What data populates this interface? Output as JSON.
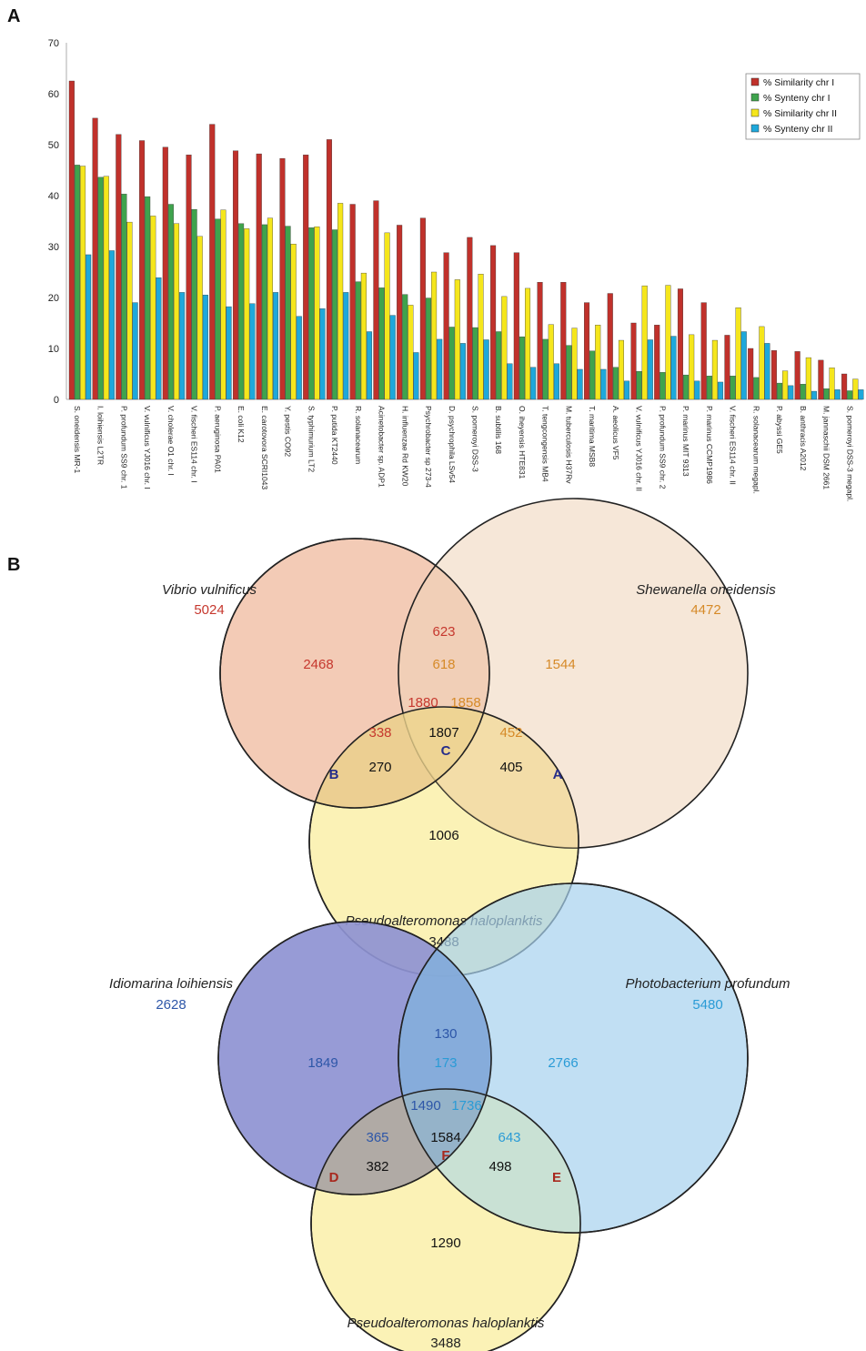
{
  "panel_a": {
    "label": "A"
  },
  "panel_b": {
    "label": "B"
  },
  "chart_data": [
    {
      "type": "bar",
      "ylim": [
        0,
        70
      ],
      "yticks": [
        0,
        10,
        20,
        30,
        40,
        50,
        60,
        70
      ],
      "grid": false,
      "legend_position": "top-right",
      "categories": [
        "S. oneidensis MR-1",
        "I. loihiensis L2TR",
        "P. profundum SS9 chr. 1",
        "V. vulnificus YJ016 chr. I",
        "V. cholerae O1 chr. I",
        "V. fischeri ES114 chr. I",
        "P. aeruginosa PA01",
        "E. coli K12",
        "E. carotovora SCRI1043",
        "Y. pestis CO92",
        "S. typhimurium LT2",
        "P. putida KT2440",
        "R. solanacearum",
        "Acinetobacter sp. ADP1",
        "H. influenzae Rd KW20",
        "Psychrobacter sp 273-4",
        "D. psychrophila LSv54",
        "S. pomeroyi DSS-3",
        "B. subtilis 168",
        "O. iheyensis HTE831",
        "T. tengcongensis MB4",
        "M. tuberculosis H37Rv",
        "T. maritima MSB8",
        "A. aeolicus VF5",
        "V. vulnificus YJ016 chr. II",
        "P. profundum SS9 chr. 2",
        "P. marinus MIT 9313",
        "P. marinus CCMP1986",
        "V. fischeri ES114 chr. II",
        "R. solanacearum megapl.",
        "P. abyssi GE5",
        "B. anthracis A2012",
        "M. jannaschii DSM 2661",
        "S. pomeroyi DSS-3 megapl."
      ],
      "series": [
        {
          "name": "% Similarity chr I",
          "color": "#c0312b",
          "values": [
            62.5,
            55.2,
            52,
            50.8,
            49.5,
            48,
            54,
            48.8,
            48.2,
            47.3,
            48,
            51,
            38.3,
            39,
            34.2,
            35.6,
            28.8,
            31.8,
            30.2,
            28.8,
            23,
            23,
            19,
            20.8,
            15,
            14.6,
            21.7,
            19,
            12.6,
            10,
            9.6,
            9.4,
            7.7,
            5
          ]
        },
        {
          "name": "% Synteny chr I",
          "color": "#3fa34d",
          "values": [
            46,
            43.6,
            40.3,
            39.8,
            38.3,
            37.3,
            35.4,
            34.5,
            34.3,
            34,
            33.7,
            33.3,
            23.1,
            21.9,
            20.6,
            19.9,
            14.2,
            14.1,
            13.3,
            12.3,
            11.8,
            10.6,
            9.5,
            6.3,
            5.5,
            5.3,
            4.8,
            4.6,
            4.6,
            4.3,
            3.2,
            3,
            2.1,
            1.7
          ]
        },
        {
          "name": "% Similarity chr II",
          "color": "#f5e61c",
          "values": [
            45.8,
            43.8,
            34.8,
            36,
            34.5,
            32,
            37.2,
            33.5,
            35.6,
            30.5,
            33.9,
            38.5,
            24.8,
            32.7,
            18.5,
            25,
            23.5,
            24.6,
            20.2,
            21.8,
            14.7,
            14,
            14.6,
            11.6,
            22.3,
            22.4,
            12.7,
            11.6,
            18,
            14.3,
            5.6,
            8.2,
            6.2,
            4
          ]
        },
        {
          "name": "% Synteny chr II",
          "color": "#1ea8db",
          "values": [
            28.4,
            29.2,
            19,
            23.9,
            21,
            20.5,
            18.2,
            18.8,
            21,
            16.3,
            17.8,
            21,
            13.3,
            16.5,
            9.2,
            11.8,
            11,
            11.7,
            7,
            6.3,
            7,
            5.9,
            5.9,
            3.6,
            11.7,
            12.4,
            3.6,
            3.4,
            13.3,
            11,
            2.7,
            1.6,
            1.9,
            1.9
          ]
        }
      ]
    },
    {
      "type": "venn",
      "sets": [
        {
          "name": "Vibrio vulnificus",
          "total": "5024",
          "color": "#c6382e"
        },
        {
          "name": "Shewanella oneidensis",
          "total": "4472",
          "color": "#d68a28"
        },
        {
          "name": "Pseudoalteromonas haloplanktis",
          "total": "3488",
          "color": "#222222"
        }
      ],
      "regions": [
        {
          "value": "2468",
          "color": "#c6382e"
        },
        {
          "value": "623",
          "color": "#c6382e"
        },
        {
          "value": "618",
          "color": "#d68a28"
        },
        {
          "value": "1544",
          "color": "#d68a28"
        },
        {
          "value": "1880",
          "color": "#c6382e"
        },
        {
          "value": "1858",
          "color": "#d68a28"
        },
        {
          "value": "338",
          "color": "#c6382e"
        },
        {
          "value": "1807",
          "color": "#111111"
        },
        {
          "value": "452",
          "color": "#d68a28"
        },
        {
          "value": "270",
          "color": "#111111"
        },
        {
          "value": "405",
          "color": "#111111"
        },
        {
          "value": "1006",
          "color": "#111111"
        }
      ],
      "region_labels": [
        {
          "label": "B",
          "color": "#262d8a"
        },
        {
          "label": "C",
          "color": "#262d8a"
        },
        {
          "label": "A",
          "color": "#262d8a"
        }
      ]
    },
    {
      "type": "venn",
      "sets": [
        {
          "name": "Idiomarina loihiensis",
          "total": "2628",
          "color": "#2d56a8"
        },
        {
          "name": "Photobacterium profundum",
          "total": "5480",
          "color": "#2a9bd6"
        },
        {
          "name": "Pseudoalteromonas haloplanktis",
          "total": "3488",
          "color": "#222222"
        }
      ],
      "regions": [
        {
          "value": "1849",
          "color": "#2d56a8"
        },
        {
          "value": "130",
          "color": "#2d56a8"
        },
        {
          "value": "173",
          "color": "#2a9bd6"
        },
        {
          "value": "2766",
          "color": "#2a9bd6"
        },
        {
          "value": "1490",
          "color": "#2d56a8"
        },
        {
          "value": "1736",
          "color": "#2a9bd6"
        },
        {
          "value": "365",
          "color": "#2d56a8"
        },
        {
          "value": "1584",
          "color": "#111111"
        },
        {
          "value": "643",
          "color": "#2a9bd6"
        },
        {
          "value": "382",
          "color": "#111111"
        },
        {
          "value": "498",
          "color": "#111111"
        },
        {
          "value": "1290",
          "color": "#111111"
        }
      ],
      "region_labels": [
        {
          "label": "D",
          "color": "#a8281e"
        },
        {
          "label": "F",
          "color": "#a8281e"
        },
        {
          "label": "E",
          "color": "#a8281e"
        }
      ]
    }
  ]
}
